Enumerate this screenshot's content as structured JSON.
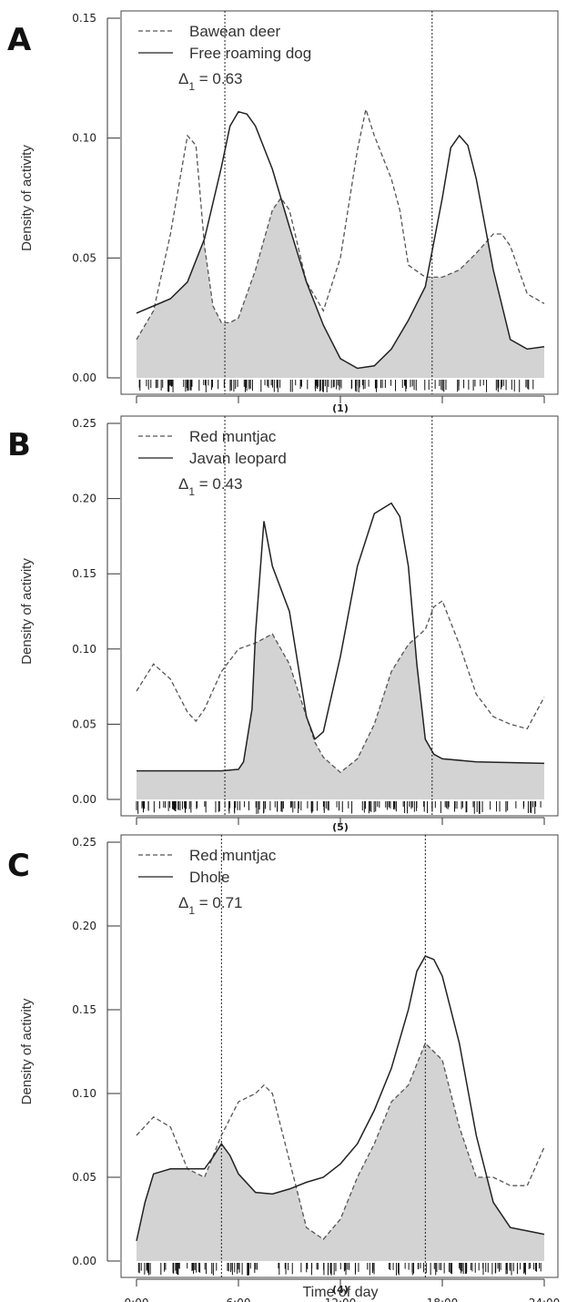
{
  "chart_data": [
    {
      "type": "area",
      "panel": "A",
      "subplot_label": "(1)",
      "ylabel": "Density of activity",
      "ylim": [
        0,
        0.15
      ],
      "yticks": [
        "0.00",
        "0.05",
        "0.10",
        "0.15"
      ],
      "xlim": [
        0,
        24
      ],
      "reference_lines_hours": [
        5.2,
        17.4
      ],
      "overlap_label": "Δ",
      "overlap_subscript": "1",
      "overlap_value": " = 0.63",
      "series": [
        {
          "name": "Bawean deer",
          "style": "dashed",
          "x": [
            0,
            1,
            2,
            3,
            3.5,
            4,
            4.5,
            5,
            5.5,
            6,
            7,
            8,
            8.5,
            9,
            10,
            11,
            12,
            13,
            13.5,
            14,
            15,
            15.5,
            16,
            17,
            18,
            19,
            20,
            21,
            21.5,
            22,
            23,
            24
          ],
          "y": [
            0.016,
            0.028,
            0.06,
            0.101,
            0.097,
            0.055,
            0.03,
            0.023,
            0.023,
            0.025,
            0.045,
            0.07,
            0.075,
            0.07,
            0.04,
            0.028,
            0.05,
            0.095,
            0.112,
            0.101,
            0.083,
            0.07,
            0.047,
            0.042,
            0.042,
            0.045,
            0.052,
            0.06,
            0.06,
            0.055,
            0.035,
            0.031
          ]
        },
        {
          "name": "Free roaming dog",
          "style": "solid",
          "x": [
            0,
            1,
            2,
            3,
            4,
            5,
            5.5,
            6,
            6.5,
            7,
            8,
            9,
            10,
            11,
            12,
            13,
            14,
            15,
            16,
            17,
            18,
            18.5,
            19,
            19.5,
            20,
            21,
            22,
            23,
            24
          ],
          "y": [
            0.027,
            0.03,
            0.033,
            0.04,
            0.058,
            0.088,
            0.105,
            0.111,
            0.11,
            0.105,
            0.087,
            0.063,
            0.04,
            0.022,
            0.008,
            0.004,
            0.005,
            0.012,
            0.024,
            0.038,
            0.075,
            0.096,
            0.101,
            0.097,
            0.083,
            0.045,
            0.016,
            0.012,
            0.013
          ]
        }
      ],
      "overlap_fill": "#d3d3d3"
    },
    {
      "type": "area",
      "panel": "B",
      "subplot_label": "(5)",
      "ylabel": "Density of activity",
      "ylim": [
        0,
        0.25
      ],
      "yticks": [
        "0.00",
        "0.05",
        "0.10",
        "0.15",
        "0.20",
        "0.25"
      ],
      "xlim": [
        0,
        24
      ],
      "reference_lines_hours": [
        5.2,
        17.4
      ],
      "overlap_label": "Δ",
      "overlap_subscript": "1",
      "overlap_value": " = 0.43",
      "series": [
        {
          "name": "Red muntjac",
          "style": "dashed",
          "x": [
            0,
            1,
            2,
            3,
            3.5,
            4,
            5,
            6,
            7,
            8,
            9,
            10,
            10.5,
            11,
            12,
            13,
            14,
            15,
            16,
            17,
            17.5,
            18,
            19,
            20,
            21,
            22,
            23,
            24
          ],
          "y": [
            0.072,
            0.09,
            0.08,
            0.058,
            0.052,
            0.06,
            0.085,
            0.1,
            0.104,
            0.11,
            0.09,
            0.055,
            0.038,
            0.028,
            0.018,
            0.027,
            0.05,
            0.085,
            0.103,
            0.113,
            0.128,
            0.132,
            0.103,
            0.07,
            0.055,
            0.05,
            0.047,
            0.068
          ]
        },
        {
          "name": "Javan leopard",
          "style": "solid",
          "x": [
            0,
            5,
            6,
            6.3,
            6.8,
            7,
            7.5,
            8,
            9,
            9.5,
            10,
            10.5,
            11,
            12,
            13,
            14,
            15,
            15.5,
            16,
            16.5,
            17,
            17.5,
            18,
            20,
            24
          ],
          "y": [
            0.019,
            0.019,
            0.02,
            0.025,
            0.06,
            0.11,
            0.185,
            0.155,
            0.125,
            0.09,
            0.055,
            0.04,
            0.045,
            0.095,
            0.155,
            0.19,
            0.197,
            0.188,
            0.155,
            0.09,
            0.04,
            0.03,
            0.027,
            0.025,
            0.024
          ]
        }
      ],
      "overlap_fill": "#d3d3d3"
    },
    {
      "type": "area",
      "panel": "C",
      "subplot_label": "(4)",
      "ylabel": "Density of activity",
      "xlabel": "Time of day",
      "ylim": [
        0,
        0.25
      ],
      "yticks": [
        "0.00",
        "0.05",
        "0.10",
        "0.15",
        "0.20",
        "0.25"
      ],
      "xlim": [
        0,
        24
      ],
      "xticks": [
        "0:00",
        "6:00",
        "12:00",
        "18:00",
        "24:00"
      ],
      "reference_lines_hours": [
        5.0,
        17.0
      ],
      "overlap_label": "Δ",
      "overlap_subscript": "1",
      "overlap_value": " = 0.71",
      "series": [
        {
          "name": "Red muntjac",
          "style": "dashed",
          "x": [
            0,
            1,
            2,
            3,
            4,
            5,
            6,
            7,
            7.5,
            8,
            9,
            10,
            11,
            12,
            13,
            14,
            15,
            16,
            17,
            18,
            19,
            20,
            21,
            22,
            23,
            24
          ],
          "y": [
            0.075,
            0.086,
            0.08,
            0.055,
            0.05,
            0.075,
            0.095,
            0.1,
            0.105,
            0.1,
            0.06,
            0.02,
            0.013,
            0.025,
            0.05,
            0.07,
            0.095,
            0.105,
            0.13,
            0.12,
            0.08,
            0.05,
            0.05,
            0.045,
            0.045,
            0.068
          ]
        },
        {
          "name": "Dhole",
          "style": "solid",
          "x": [
            0,
            0.5,
            1,
            2,
            3,
            4,
            4.5,
            5,
            5.5,
            6,
            7,
            8,
            9,
            10,
            11,
            12,
            13,
            14,
            15,
            16,
            16.5,
            17,
            17.5,
            18,
            19,
            20,
            21,
            22,
            23,
            24
          ],
          "y": [
            0.012,
            0.035,
            0.052,
            0.055,
            0.055,
            0.055,
            0.062,
            0.07,
            0.063,
            0.052,
            0.041,
            0.04,
            0.043,
            0.047,
            0.05,
            0.058,
            0.07,
            0.09,
            0.115,
            0.15,
            0.173,
            0.182,
            0.18,
            0.17,
            0.13,
            0.075,
            0.035,
            0.02,
            0.018,
            0.016
          ]
        }
      ],
      "overlap_fill": "#d3d3d3"
    }
  ]
}
